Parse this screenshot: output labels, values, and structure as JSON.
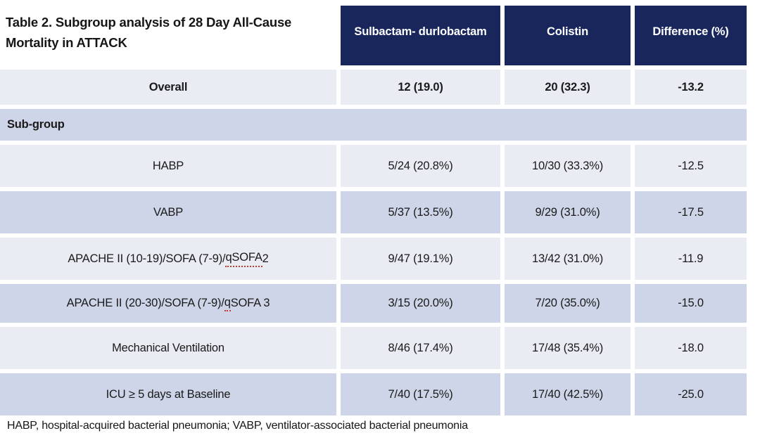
{
  "title": "Table 2. Subgroup analysis of 28 Day All-Cause Mortality in ATTACK",
  "columns": [
    "Sulbactam- durlobactam",
    "Colistin",
    "Difference (%)"
  ],
  "overall": {
    "label": "Overall",
    "sulbactam_durlobactam": "12 (19.0)",
    "colistin": "20 (32.3)",
    "difference": "-13.2"
  },
  "subgroup_label": "Sub-group",
  "rows": [
    {
      "label": "HABP",
      "sulbactam_durlobactam": "5/24 (20.8%)",
      "colistin": "10/30 (33.3%)",
      "difference": "-12.5"
    },
    {
      "label": "VABP",
      "sulbactam_durlobactam": "5/37 (13.5%)",
      "colistin": "9/29 (31.0%)",
      "difference": "-17.5"
    },
    {
      "label_prefix": "APACHE II (10-19)/SOFA (7-9)/",
      "label_flagged": "qSOFA",
      "label_suffix": " 2",
      "sulbactam_durlobactam": "9/47 (19.1%)",
      "colistin": "13/42 (31.0%)",
      "difference": "-11.9"
    },
    {
      "label_prefix": "APACHE II (20-30)/SOFA (7-9)/",
      "label_flagged": "q",
      "label_suffix": "SOFA 3",
      "sulbactam_durlobactam": "3/15 (20.0%)",
      "colistin": "7/20 (35.0%)",
      "difference": "-15.0"
    },
    {
      "label": "Mechanical Ventilation",
      "sulbactam_durlobactam": "8/46 (17.4%)",
      "colistin": "17/48 (35.4%)",
      "difference": "-18.0"
    },
    {
      "label": "ICU ≥ 5 days at Baseline",
      "sulbactam_durlobactam": "7/40 (17.5%)",
      "colistin": "17/40 (42.5%)",
      "difference": "-25.0"
    }
  ],
  "footnote": "HABP, hospital-acquired bacterial pneumonia; VABP, ventilator-associated bacterial pneumonia",
  "colors": {
    "header_bg": "#18265B",
    "row_light": "#EAECF4",
    "row_dark": "#CFD5E8",
    "flag_red": "#C03A2E",
    "header_text": "#FFFFFF",
    "body_text": "#1A1A1A"
  },
  "chart_data": {
    "type": "table",
    "title": "Table 2. Subgroup analysis of 28 Day All-Cause Mortality in ATTACK",
    "columns": [
      "Subgroup",
      "Sulbactam- durlobactam",
      "Colistin",
      "Difference (%)"
    ],
    "rows": [
      [
        "Overall",
        "12 (19.0)",
        "20 (32.3)",
        -13.2
      ],
      [
        "HABP",
        "5/24 (20.8%)",
        "10/30 (33.3%)",
        -12.5
      ],
      [
        "VABP",
        "5/37 (13.5%)",
        "9/29 (31.0%)",
        -17.5
      ],
      [
        "APACHE II (10-19)/SOFA (7-9)/qSOFA 2",
        "9/47 (19.1%)",
        "13/42 (31.0%)",
        -11.9
      ],
      [
        "APACHE II (20-30)/SOFA (7-9)/qSOFA 3",
        "3/15 (20.0%)",
        "7/20 (35.0%)",
        -15.0
      ],
      [
        "Mechanical Ventilation",
        "8/46 (17.4%)",
        "17/48 (35.4%)",
        -18.0
      ],
      [
        "ICU ≥ 5 days at Baseline",
        "7/40 (17.5%)",
        "17/40 (42.5%)",
        -25.0
      ]
    ],
    "footnote": "HABP, hospital-acquired bacterial pneumonia; VABP, ventilator-associated bacterial pneumonia",
    "layout": {
      "header_fill": "#18265B",
      "alternating_row_fills": [
        "#EAECF4",
        "#CFD5E8"
      ],
      "grid": "off"
    }
  }
}
